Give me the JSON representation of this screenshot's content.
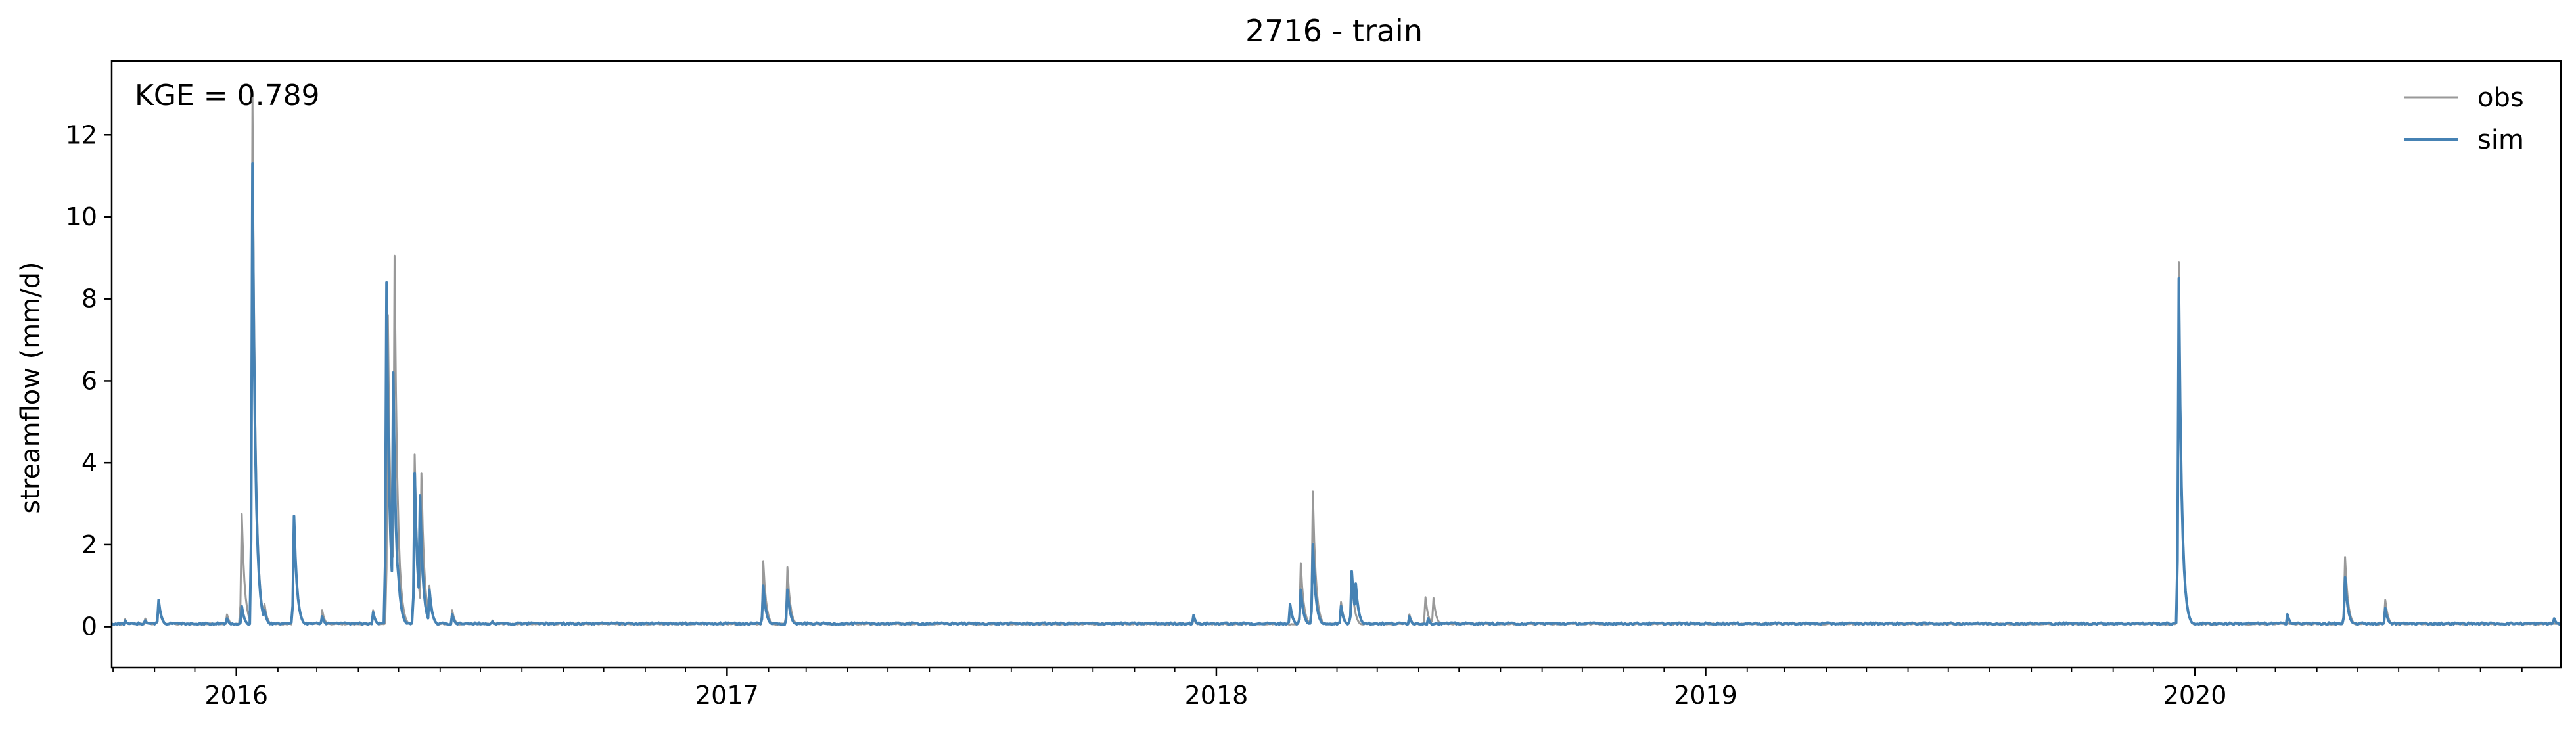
{
  "chart_data": {
    "type": "line",
    "title": "2716 - train",
    "xlabel": "",
    "ylabel": "streamflow (mm/d)",
    "annotation": "KGE = 0.789",
    "legend_position": "top-right",
    "grid": false,
    "x_axis": {
      "type": "date",
      "range": [
        "2015-09-30",
        "2020-09-30"
      ],
      "major_ticks": [
        "2016-01-01",
        "2017-01-01",
        "2018-01-01",
        "2019-01-01",
        "2020-01-01"
      ],
      "major_tick_labels": [
        "2016",
        "2017",
        "2018",
        "2019",
        "2020"
      ]
    },
    "y_axis": {
      "range": [
        -1.0,
        13.8
      ],
      "ticks": [
        0,
        2,
        4,
        6,
        8,
        10,
        12
      ],
      "tick_labels": [
        "0",
        "2",
        "4",
        "6",
        "8",
        "10",
        "12"
      ]
    },
    "baseline": 0.05,
    "series": [
      {
        "name": "obs",
        "color": "#999999",
        "line_width": 1.0,
        "points": [
          {
            "x": "2015-10-10",
            "y": 0.18
          },
          {
            "x": "2015-10-25",
            "y": 0.2
          },
          {
            "x": "2015-11-04",
            "y": 0.55
          },
          {
            "x": "2015-12-25",
            "y": 0.3
          },
          {
            "x": "2016-01-05",
            "y": 2.75
          },
          {
            "x": "2016-01-08",
            "y": 0.55
          },
          {
            "x": "2016-01-13",
            "y": 12.9
          },
          {
            "x": "2016-01-17",
            "y": 1.2
          },
          {
            "x": "2016-01-22",
            "y": 0.55
          },
          {
            "x": "2016-02-13",
            "y": 2.6
          },
          {
            "x": "2016-03-05",
            "y": 0.4
          },
          {
            "x": "2016-04-12",
            "y": 0.4
          },
          {
            "x": "2016-04-23",
            "y": 7.6
          },
          {
            "x": "2016-04-25",
            "y": 1.2
          },
          {
            "x": "2016-04-28",
            "y": 9.05
          },
          {
            "x": "2016-05-01",
            "y": 1.5
          },
          {
            "x": "2016-05-13",
            "y": 4.2
          },
          {
            "x": "2016-05-18",
            "y": 3.75
          },
          {
            "x": "2016-05-24",
            "y": 1.0
          },
          {
            "x": "2016-06-10",
            "y": 0.4
          },
          {
            "x": "2016-07-10",
            "y": 0.15
          },
          {
            "x": "2017-01-28",
            "y": 1.6
          },
          {
            "x": "2017-02-15",
            "y": 1.45
          },
          {
            "x": "2017-12-15",
            "y": 0.2
          },
          {
            "x": "2018-03-05",
            "y": 1.55
          },
          {
            "x": "2018-03-14",
            "y": 3.3
          },
          {
            "x": "2018-04-04",
            "y": 0.6
          },
          {
            "x": "2018-04-12",
            "y": 1.2
          },
          {
            "x": "2018-05-25",
            "y": 0.3
          },
          {
            "x": "2018-06-06",
            "y": 0.72
          },
          {
            "x": "2018-06-12",
            "y": 0.7
          },
          {
            "x": "2019-12-20",
            "y": 8.9
          },
          {
            "x": "2020-04-22",
            "y": 1.7
          },
          {
            "x": "2020-05-22",
            "y": 0.65
          }
        ]
      },
      {
        "name": "sim",
        "color": "#4682b4",
        "line_width": 1.6,
        "points": [
          {
            "x": "2015-10-10",
            "y": 0.15
          },
          {
            "x": "2015-10-25",
            "y": 0.15
          },
          {
            "x": "2015-11-04",
            "y": 0.65
          },
          {
            "x": "2015-12-25",
            "y": 0.2
          },
          {
            "x": "2016-01-05",
            "y": 0.5
          },
          {
            "x": "2016-01-13",
            "y": 11.3
          },
          {
            "x": "2016-01-17",
            "y": 1.0
          },
          {
            "x": "2016-01-22",
            "y": 0.4
          },
          {
            "x": "2016-02-13",
            "y": 2.7
          },
          {
            "x": "2016-03-05",
            "y": 0.25
          },
          {
            "x": "2016-04-12",
            "y": 0.35
          },
          {
            "x": "2016-04-22",
            "y": 8.4
          },
          {
            "x": "2016-04-25",
            "y": 2.0
          },
          {
            "x": "2016-04-27",
            "y": 6.2
          },
          {
            "x": "2016-05-01",
            "y": 1.2
          },
          {
            "x": "2016-05-13",
            "y": 3.75
          },
          {
            "x": "2016-05-17",
            "y": 3.2
          },
          {
            "x": "2016-05-24",
            "y": 0.9
          },
          {
            "x": "2016-06-10",
            "y": 0.3
          },
          {
            "x": "2016-07-10",
            "y": 0.12
          },
          {
            "x": "2017-01-28",
            "y": 1.0
          },
          {
            "x": "2017-02-15",
            "y": 0.9
          },
          {
            "x": "2017-12-15",
            "y": 0.28
          },
          {
            "x": "2018-02-25",
            "y": 0.55
          },
          {
            "x": "2018-03-05",
            "y": 0.9
          },
          {
            "x": "2018-03-14",
            "y": 2.0
          },
          {
            "x": "2018-04-04",
            "y": 0.5
          },
          {
            "x": "2018-04-12",
            "y": 1.35
          },
          {
            "x": "2018-04-15",
            "y": 1.05
          },
          {
            "x": "2018-05-25",
            "y": 0.25
          },
          {
            "x": "2018-06-08",
            "y": 0.2
          },
          {
            "x": "2019-12-20",
            "y": 8.5
          },
          {
            "x": "2020-03-10",
            "y": 0.3
          },
          {
            "x": "2020-04-22",
            "y": 1.2
          },
          {
            "x": "2020-05-22",
            "y": 0.45
          },
          {
            "x": "2020-09-25",
            "y": 0.2
          }
        ]
      }
    ]
  }
}
